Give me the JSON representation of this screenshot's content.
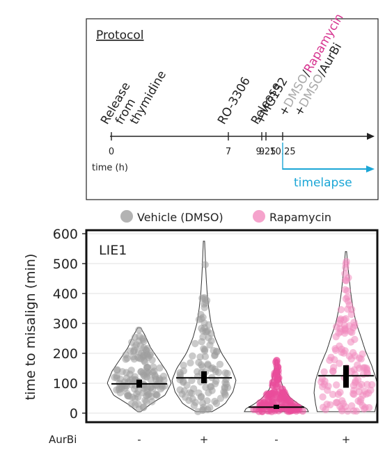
{
  "protocol": {
    "title": "Protocol",
    "events": [
      {
        "t": 0,
        "lines": [
          "Release",
          "from",
          "thymidine"
        ],
        "tick": "0"
      },
      {
        "t": 7,
        "lines": [
          "RO-3306"
        ],
        "tick": "7"
      },
      {
        "t": 9,
        "lines": [
          "Release"
        ],
        "tick": "9"
      },
      {
        "t": 9.25,
        "lines": [
          "+MG132"
        ],
        "tick": "9.25"
      },
      {
        "t": 10.25,
        "lines": [],
        "tick": "10.25"
      }
    ],
    "treatments": [
      {
        "prefix": "+",
        "part1": "DMSO",
        "sep": "/",
        "part2": "Rapamycin",
        "color1": "#aaaaaa",
        "color2": "#d6338f"
      },
      {
        "prefix": "+",
        "part1": "DMSO",
        "sep": "/",
        "part2": "AurBi",
        "color1": "#aaaaaa",
        "color2": "#222222"
      }
    ],
    "axis_label": "time (h)",
    "timelapse_label": "timelapse",
    "timelapse_color": "#1ba6d6"
  },
  "legend": [
    {
      "label": "Vehicle (DMSO)",
      "color": "#b3b3b3"
    },
    {
      "label": "Rapamycin",
      "color": "#f5a3cc"
    }
  ],
  "chart_data": {
    "type": "violin",
    "panel_label": "LIE1",
    "ylabel": "time to misalign (min)",
    "ylim": [
      0,
      600
    ],
    "yticks": [
      0,
      100,
      200,
      300,
      400,
      500,
      600
    ],
    "row_label": "AurBi",
    "groups": [
      {
        "name": "Vehicle (DMSO)",
        "aurbi": "-",
        "color": "#a8a8a8",
        "dot": "#9e9e9e",
        "mean": 98,
        "ci": [
          85,
          112
        ],
        "min": 5,
        "max": 285,
        "profile": [
          [
            5,
            0.05
          ],
          [
            30,
            0.35
          ],
          [
            60,
            0.8
          ],
          [
            100,
            1.0
          ],
          [
            140,
            0.85
          ],
          [
            180,
            0.6
          ],
          [
            220,
            0.35
          ],
          [
            260,
            0.18
          ],
          [
            285,
            0.05
          ]
        ],
        "n": 140
      },
      {
        "name": "Vehicle (DMSO)",
        "aurbi": "+",
        "color": "#a8a8a8",
        "dot": "#9e9e9e",
        "mean": 118,
        "ci": [
          100,
          140
        ],
        "min": 5,
        "max": 575,
        "profile": [
          [
            5,
            0.25
          ],
          [
            30,
            0.65
          ],
          [
            70,
            0.9
          ],
          [
            110,
            1.0
          ],
          [
            150,
            0.85
          ],
          [
            200,
            0.55
          ],
          [
            250,
            0.35
          ],
          [
            300,
            0.22
          ],
          [
            350,
            0.15
          ],
          [
            400,
            0.1
          ],
          [
            450,
            0.07
          ],
          [
            520,
            0.04
          ],
          [
            575,
            0.02
          ]
        ],
        "n": 110
      },
      {
        "name": "Rapamycin",
        "aurbi": "-",
        "color": "#f48fc0",
        "dot": "#ea4d9b",
        "mean": 20,
        "ci": [
          14,
          28
        ],
        "min": 5,
        "max": 178,
        "profile": [
          [
            5,
            1.0
          ],
          [
            15,
            0.95
          ],
          [
            30,
            0.7
          ],
          [
            50,
            0.45
          ],
          [
            80,
            0.22
          ],
          [
            110,
            0.14
          ],
          [
            140,
            0.08
          ],
          [
            178,
            0.02
          ]
        ],
        "n": 160
      },
      {
        "name": "Rapamycin",
        "aurbi": "+",
        "color": "#f5a3cc",
        "dot": "#f08bbd",
        "mean": 125,
        "ci": [
          85,
          160
        ],
        "min": 5,
        "max": 540,
        "profile": [
          [
            5,
            0.9
          ],
          [
            30,
            0.95
          ],
          [
            70,
            1.0
          ],
          [
            110,
            0.95
          ],
          [
            160,
            0.8
          ],
          [
            210,
            0.6
          ],
          [
            260,
            0.45
          ],
          [
            300,
            0.32
          ],
          [
            350,
            0.22
          ],
          [
            400,
            0.15
          ],
          [
            450,
            0.1
          ],
          [
            500,
            0.05
          ],
          [
            540,
            0.02
          ]
        ],
        "n": 130
      }
    ]
  }
}
